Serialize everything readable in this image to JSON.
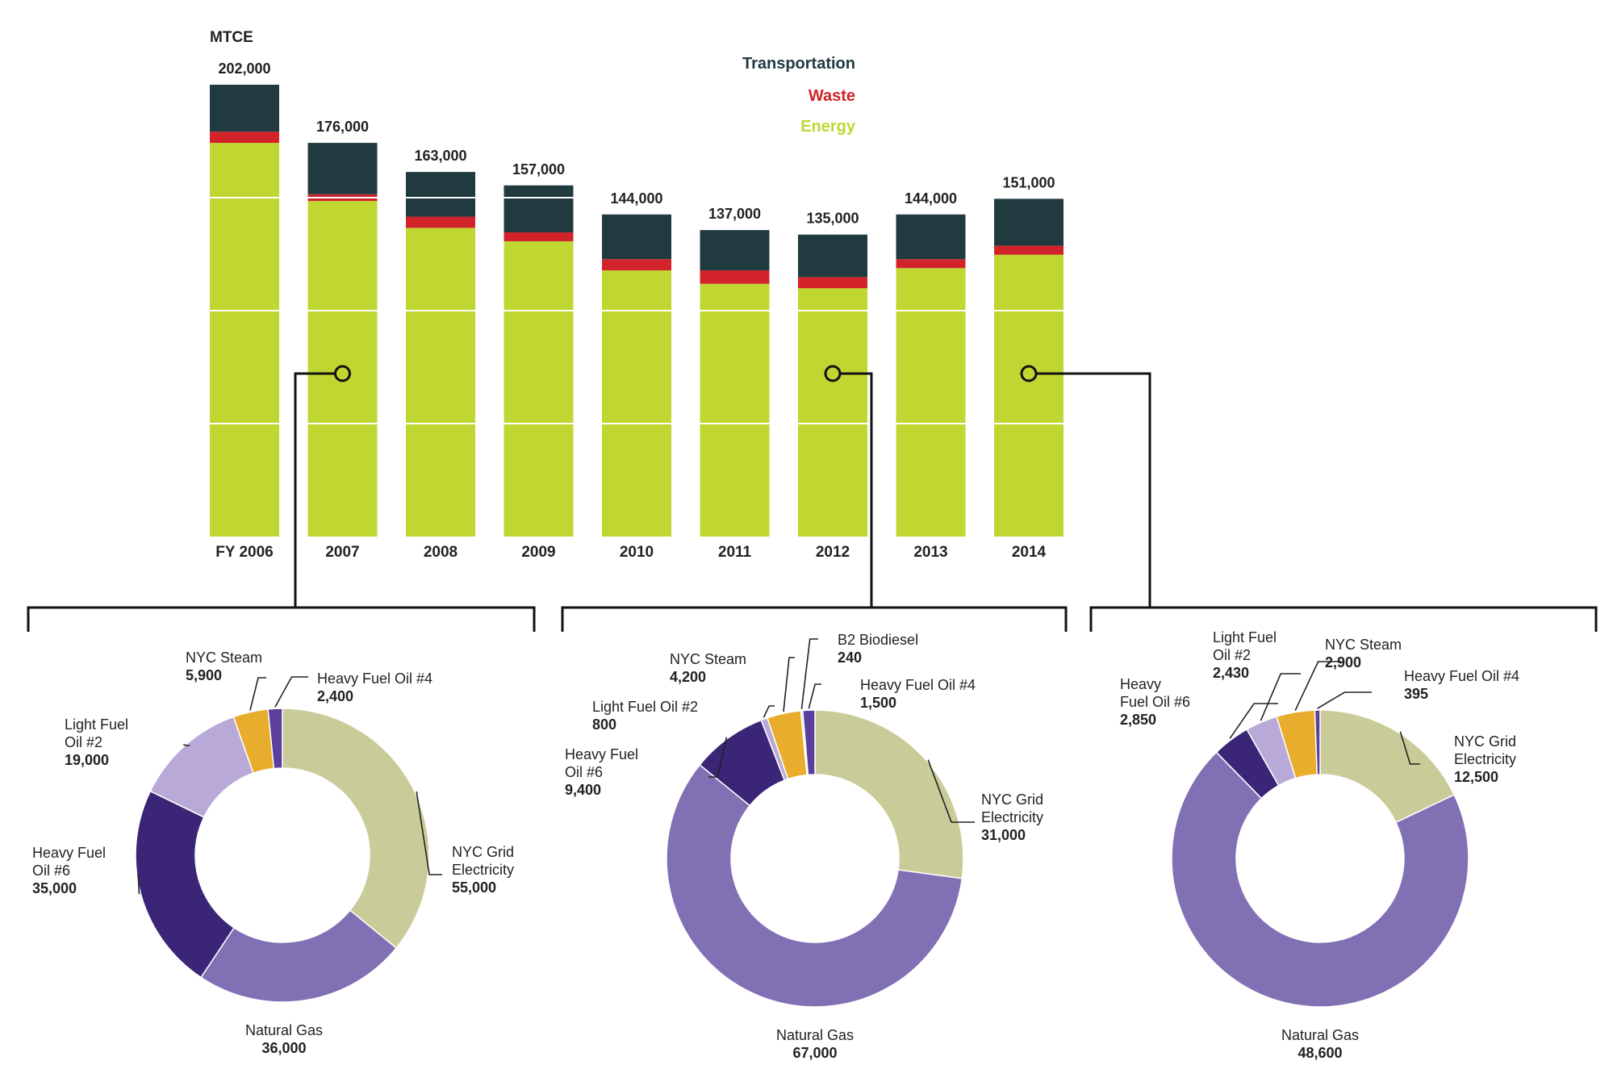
{
  "colors": {
    "Transportation": "#203a40",
    "Waste": "#d2232a",
    "Energy": "#bfd730",
    "connector": "#111111"
  },
  "chart_data": [
    {
      "type": "bar",
      "stacked": true,
      "unit_label": "MTCE",
      "categories": [
        "FY 2006",
        "2007",
        "2008",
        "2009",
        "2010",
        "2011",
        "2012",
        "2013",
        "2014"
      ],
      "totals_labels": [
        "202,000",
        "176,000",
        "163,000",
        "157,000",
        "144,000",
        "137,000",
        "135,000",
        "144,000",
        "151,000"
      ],
      "totals": [
        202000,
        176000,
        163000,
        157000,
        144000,
        137000,
        135000,
        144000,
        151000
      ],
      "series": [
        {
          "name": "Energy",
          "values": [
            176000,
            150000,
            138000,
            132000,
            119000,
            113000,
            111000,
            120000,
            126000
          ]
        },
        {
          "name": "Waste",
          "values": [
            5000,
            3000,
            5000,
            4000,
            5000,
            6000,
            5000,
            4000,
            4000
          ]
        },
        {
          "name": "Transportation",
          "values": [
            21000,
            23000,
            20000,
            21000,
            20000,
            18000,
            19000,
            20000,
            21000
          ]
        }
      ],
      "legend": [
        "Transportation",
        "Waste",
        "Energy"
      ],
      "legend_position": "top-center",
      "grid": true,
      "ylim": [
        0,
        202000
      ]
    },
    {
      "type": "pie",
      "donut": true,
      "linked_category": "2007",
      "slices": [
        {
          "label": [
            "NYC Grid",
            "Electricity"
          ],
          "value": 55000,
          "value_label": "55,000",
          "color": "#c9cc98"
        },
        {
          "label": [
            "Natural Gas"
          ],
          "value": 36000,
          "value_label": "36,000",
          "color": "#8170b3"
        },
        {
          "label": [
            "Heavy Fuel",
            "Oil #6"
          ],
          "value": 35000,
          "value_label": "35,000",
          "color": "#3b2576"
        },
        {
          "label": [
            "Light Fuel",
            "Oil #2"
          ],
          "value": 19000,
          "value_label": "19,000",
          "color": "#b9a9d8"
        },
        {
          "label": [
            "NYC Steam"
          ],
          "value": 5900,
          "value_label": "5,900",
          "color": "#e8ad2c"
        },
        {
          "label": [
            "Heavy Fuel Oil #4"
          ],
          "value": 2400,
          "value_label": "2,400",
          "color": "#5a3f9c"
        }
      ]
    },
    {
      "type": "pie",
      "donut": true,
      "linked_category": "2012",
      "slices": [
        {
          "label": [
            "NYC Grid",
            "Electricity"
          ],
          "value": 31000,
          "value_label": "31,000",
          "color": "#c9cc98"
        },
        {
          "label": [
            "Natural Gas"
          ],
          "value": 67000,
          "value_label": "67,000",
          "color": "#8170b3"
        },
        {
          "label": [
            "Heavy Fuel",
            "Oil #6"
          ],
          "value": 9400,
          "value_label": "9,400",
          "color": "#3b2576"
        },
        {
          "label": [
            "Light Fuel Oil #2"
          ],
          "value": 800,
          "value_label": "800",
          "color": "#b9a9d8"
        },
        {
          "label": [
            "NYC Steam"
          ],
          "value": 4200,
          "value_label": "4,200",
          "color": "#e8ad2c"
        },
        {
          "label": [
            "B2 Biodiesel"
          ],
          "value": 240,
          "value_label": "240",
          "color": "#d9d9c0"
        },
        {
          "label": [
            "Heavy Fuel Oil #4"
          ],
          "value": 1500,
          "value_label": "1,500",
          "color": "#5a3f9c"
        }
      ]
    },
    {
      "type": "pie",
      "donut": true,
      "linked_category": "2014",
      "slices": [
        {
          "label": [
            "NYC Grid",
            "Electricity"
          ],
          "value": 12500,
          "value_label": "12,500",
          "color": "#c9cc98"
        },
        {
          "label": [
            "Natural Gas"
          ],
          "value": 48600,
          "value_label": "48,600",
          "color": "#8170b3"
        },
        {
          "label": [
            "Heavy",
            "Fuel Oil #6"
          ],
          "value": 2850,
          "value_label": "2,850",
          "color": "#3b2576"
        },
        {
          "label": [
            "Light Fuel",
            "Oil #2"
          ],
          "value": 2430,
          "value_label": "2,430",
          "color": "#b9a9d8"
        },
        {
          "label": [
            "NYC Steam"
          ],
          "value": 2900,
          "value_label": "2,900",
          "color": "#e8ad2c"
        },
        {
          "label": [
            "Heavy Fuel Oil #4"
          ],
          "value": 395,
          "value_label": "395",
          "color": "#5a3f9c"
        }
      ]
    }
  ]
}
